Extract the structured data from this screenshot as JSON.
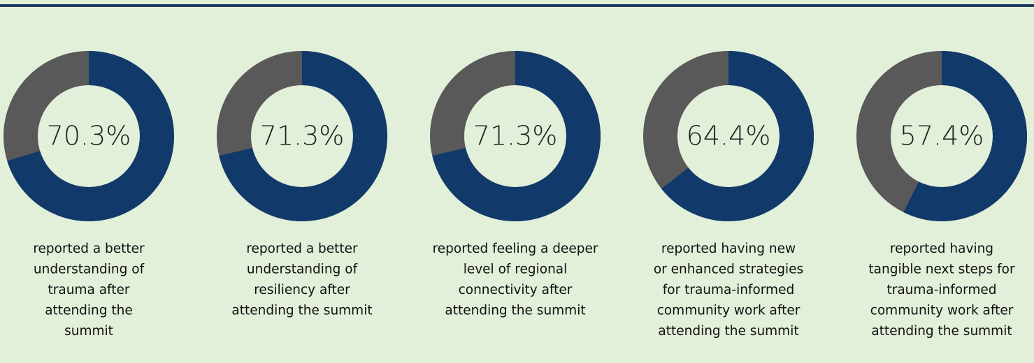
{
  "chart_data": [
    {
      "type": "donut",
      "values": [
        70.3
      ],
      "value_labels": [
        "70.3%"
      ],
      "color": "#113a6b",
      "track_color": "#595959",
      "caption": [
        "reported a better",
        "understanding of",
        "trauma after",
        "attending the",
        "summit"
      ]
    },
    {
      "type": "donut",
      "values": [
        71.3
      ],
      "value_labels": [
        "71.3%"
      ],
      "color": "#113a6b",
      "track_color": "#595959",
      "caption": [
        "reported a better",
        "understanding of",
        "resiliency after",
        "attending the summit"
      ]
    },
    {
      "type": "donut",
      "values": [
        71.3
      ],
      "value_labels": [
        "71.3%"
      ],
      "color": "#113a6b",
      "track_color": "#595959",
      "caption": [
        "reported feeling a deeper",
        "level of regional",
        "connectivity after",
        "attending the summit"
      ]
    },
    {
      "type": "donut",
      "values": [
        64.4
      ],
      "value_labels": [
        "64.4%"
      ],
      "color": "#113a6b",
      "track_color": "#595959",
      "caption": [
        "reported having new",
        "or enhanced strategies",
        "for trauma-informed",
        "community work after",
        "attending the summit"
      ]
    },
    {
      "type": "donut",
      "values": [
        57.4
      ],
      "value_labels": [
        "57.4%"
      ],
      "color": "#113a6b",
      "track_color": "#595959",
      "caption": [
        "reported having",
        "tangible next steps for",
        "trauma-informed",
        "community work after",
        "attending the summit"
      ]
    }
  ]
}
